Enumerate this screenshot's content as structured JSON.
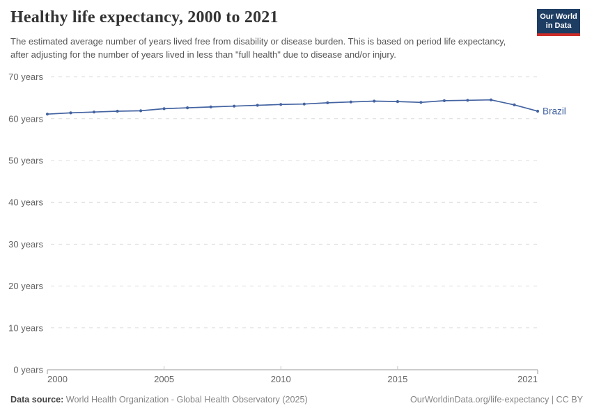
{
  "header": {
    "title": "Healthy life expectancy, 2000 to 2021",
    "subtitle": "The estimated average number of years lived free from disability or disease burden. This is based on period life expectancy, after adjusting for the number of years lived in less than \"full health\" due to disease and/or injury.",
    "logo": {
      "line1": "Our World",
      "line2": "in Data"
    }
  },
  "chart_data": {
    "type": "line",
    "title": "Healthy life expectancy, 2000 to 2021",
    "x": [
      2000,
      2001,
      2002,
      2003,
      2004,
      2005,
      2006,
      2007,
      2008,
      2009,
      2010,
      2011,
      2012,
      2013,
      2014,
      2015,
      2016,
      2017,
      2018,
      2019,
      2020,
      2021
    ],
    "series": [
      {
        "name": "Brazil",
        "color": "#4363a1",
        "values": [
          61.1,
          61.4,
          61.6,
          61.8,
          61.9,
          62.4,
          62.6,
          62.8,
          63.0,
          63.2,
          63.4,
          63.5,
          63.8,
          64.0,
          64.2,
          64.1,
          63.9,
          64.3,
          64.4,
          64.5,
          63.3,
          61.8
        ]
      }
    ],
    "xlabel": "",
    "ylabel": "",
    "xlim": [
      2000,
      2021
    ],
    "ylim": [
      0,
      70
    ],
    "xticks": [
      2000,
      2005,
      2010,
      2015,
      2021
    ],
    "yticks": [
      0,
      10,
      20,
      30,
      40,
      50,
      60,
      70
    ],
    "ytick_suffix": " years",
    "grid": "horizontal-dashed",
    "legend_position": "end-of-line-label"
  },
  "footer": {
    "datasource_label": "Data source:",
    "datasource_text": "World Health Organization - Global Health Observatory (2025)",
    "attribution": "OurWorldinData.org/life-expectancy | CC BY"
  },
  "colors": {
    "series_brazil": "#4363a1",
    "brand_navy": "#1d3d63",
    "brand_red": "#cf2d27",
    "gridline": "#dcdcdc",
    "axis": "#999999"
  }
}
